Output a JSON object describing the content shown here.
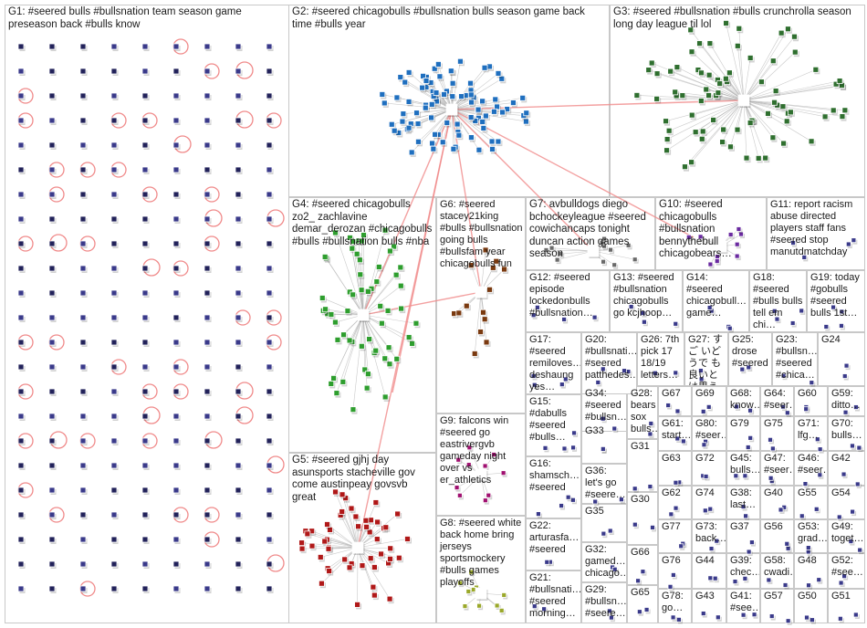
{
  "graph": {
    "panels": [
      {
        "id": "G1",
        "label": "G1: #seered bulls #bullsnation team season game preseason back #bulls know"
      },
      {
        "id": "G2",
        "label": "G2: #seered chicagobulls #bullsnation bulls season game back time #bulls year"
      },
      {
        "id": "G3",
        "label": "G3: #seered #bullsnation #bulls crunchrolla season long day league til lol"
      },
      {
        "id": "G4",
        "label": "G4: #seered chicagobulls zo2_ zachlavine demar_derozan #chicagobulls #bulls #bullsnation bulls #nba"
      },
      {
        "id": "G5",
        "label": "G5: #seered gjhj day asunsports stacheville gov come austinpeay govsvb great"
      },
      {
        "id": "G6",
        "label": "G6: #seered stacey21king #bulls #bullsnation going bulls #bullsfam year chicagobulls fun"
      },
      {
        "id": "G7",
        "label": "G7: avbulldogs diego bchockeyleague #seered cowichancaps tonight duncan action games season"
      },
      {
        "id": "G8",
        "label": "G8: #seered white back home bring jerseys sportsmockery #bulls games playoffs"
      },
      {
        "id": "G9",
        "label": "G9: falcons win #seered go eastrivergvb gameday night over vs er_athletics"
      },
      {
        "id": "G10",
        "label": "G10: #seered chicagobulls #bullsnation bennythebull chicagobears…"
      },
      {
        "id": "G11",
        "label": "G11: report racism abuse directed players staff fans #seered stop manutdmatchday"
      },
      {
        "id": "G12",
        "label": "G12: #seered episode lockedonbulls #bullsnation…"
      },
      {
        "id": "G13",
        "label": "G13: #seered #bullsnation chicagobulls go kcjhoop…"
      },
      {
        "id": "G14",
        "label": "G14: #seered chicagobull… game…"
      },
      {
        "id": "G18",
        "label": "G18: #seered #bulls bulls tell em chi…"
      },
      {
        "id": "G19",
        "label": "G19: today #gobulls #seered bulls 1st…"
      },
      {
        "id": "G17",
        "label": "G17: #seered remiloves… deshaung yes…"
      },
      {
        "id": "G20",
        "label": "G20: #bullsnati… #seered patthedes…"
      },
      {
        "id": "G26",
        "label": "G26: 7th pick 17 18/19 letters…"
      },
      {
        "id": "G27",
        "label": "G27: すご いどうで も良いと は思うん…"
      },
      {
        "id": "G25",
        "label": "G25: drose #seered"
      },
      {
        "id": "G23",
        "label": "G23: #bullsn… #seered #chica…"
      },
      {
        "id": "G24",
        "label": "G24"
      },
      {
        "id": "G15",
        "label": "G15: #dabulls #seered #bulls…"
      },
      {
        "id": "G34",
        "label": "G34: #seered #bullsn…"
      },
      {
        "id": "G28",
        "label": "G28: bears sox bulls…"
      },
      {
        "id": "G33",
        "label": "G33"
      },
      {
        "id": "G31",
        "label": "G31"
      },
      {
        "id": "G16",
        "label": "G16: shamsch… #seered"
      },
      {
        "id": "G36",
        "label": "G36: let's go #seere…"
      },
      {
        "id": "G35",
        "label": "G35"
      },
      {
        "id": "G30",
        "label": "G30"
      },
      {
        "id": "G22",
        "label": "G22: arturasfa… #seered"
      },
      {
        "id": "G32",
        "label": "G32: gamed… chicago…"
      },
      {
        "id": "G66",
        "label": "G66"
      },
      {
        "id": "G21",
        "label": "G21: #bullsnati… #seered morning…"
      },
      {
        "id": "G29",
        "label": "G29: #bullsn… #seere…"
      },
      {
        "id": "G65",
        "label": "G65"
      },
      {
        "id": "G67",
        "label": "G67"
      },
      {
        "id": "G69",
        "label": "G69"
      },
      {
        "id": "G68",
        "label": "G68: know…"
      },
      {
        "id": "G64",
        "label": "G64: #seer…"
      },
      {
        "id": "G60",
        "label": "G60"
      },
      {
        "id": "G59",
        "label": "G59: ditto…"
      },
      {
        "id": "G61",
        "label": "G61: start…"
      },
      {
        "id": "G80",
        "label": "G80: #seer…"
      },
      {
        "id": "G79",
        "label": "G79"
      },
      {
        "id": "G75",
        "label": "G75"
      },
      {
        "id": "G71",
        "label": "G71: lfg…"
      },
      {
        "id": "G70",
        "label": "G70: bulls…"
      },
      {
        "id": "G63",
        "label": "G63"
      },
      {
        "id": "G72",
        "label": "G72"
      },
      {
        "id": "G45",
        "label": "G45: bulls…"
      },
      {
        "id": "G47",
        "label": "G47: #seer…"
      },
      {
        "id": "G46",
        "label": "G46: #seer…"
      },
      {
        "id": "G42",
        "label": "G42"
      },
      {
        "id": "G62",
        "label": "G62"
      },
      {
        "id": "G74",
        "label": "G74"
      },
      {
        "id": "G38",
        "label": "G38: last…"
      },
      {
        "id": "G40",
        "label": "G40"
      },
      {
        "id": "G55",
        "label": "G55"
      },
      {
        "id": "G54",
        "label": "G54"
      },
      {
        "id": "G77",
        "label": "G77"
      },
      {
        "id": "G73",
        "label": "G73: back…"
      },
      {
        "id": "G37",
        "label": "G37"
      },
      {
        "id": "G56",
        "label": "G56"
      },
      {
        "id": "G53",
        "label": "G53: grad…"
      },
      {
        "id": "G49",
        "label": "G49: toget…"
      },
      {
        "id": "G76",
        "label": "G76"
      },
      {
        "id": "G44",
        "label": "G44"
      },
      {
        "id": "G39",
        "label": "G39: chec…"
      },
      {
        "id": "G58",
        "label": "G58: cwadi…"
      },
      {
        "id": "G48",
        "label": "G48"
      },
      {
        "id": "G52",
        "label": "G52: #see…"
      },
      {
        "id": "G78",
        "label": "G78: go…"
      },
      {
        "id": "G43",
        "label": "G43"
      },
      {
        "id": "G41",
        "label": "G41: #see…"
      },
      {
        "id": "G57",
        "label": "G57"
      },
      {
        "id": "G50",
        "label": "G50"
      },
      {
        "id": "G51",
        "label": "G51"
      }
    ],
    "colors": {
      "G1": "#2a2a6a",
      "G2": "#1f6fbf",
      "G3": "#2f6f2f",
      "G4": "#2e9e2e",
      "G5": "#b01818",
      "G6": "#7a3a10",
      "G7": "#6a6a6a",
      "G8": "#9aa82a",
      "G9": "#a01070",
      "G10": "#6a2aa0",
      "G11": "#808080",
      "edge_red": "#f08a8a",
      "edge_gray": "#b4b4b4"
    }
  }
}
